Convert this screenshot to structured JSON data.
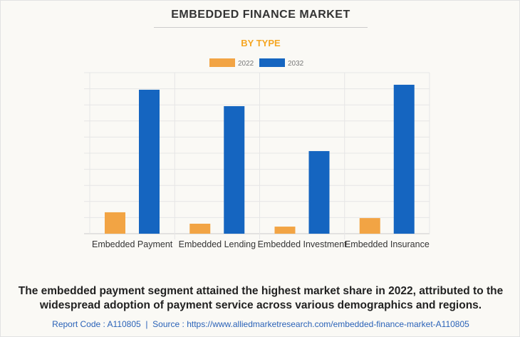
{
  "title": "EMBEDDED FINANCE MARKET",
  "subtitle": "BY TYPE",
  "caption": "The embedded payment segment attained the highest market share in 2022, attributed to the widespread adoption of payment service across various demographics and regions.",
  "source": {
    "report_code": "Report Code : A110805",
    "separator": "|",
    "source_text": "Source : https://www.alliedmarketresearch.com/embedded-finance-market-A110805"
  },
  "chart_data": {
    "type": "bar",
    "title": "EMBEDDED FINANCE MARKET",
    "subtitle": "BY TYPE",
    "categories": [
      "Embedded Payment",
      "Embedded Lending",
      "Embedded Investment",
      "Embedded Insurance"
    ],
    "series": [
      {
        "name": "2022",
        "color": "#f2a444",
        "values": [
          1.33,
          0.62,
          0.44,
          0.97
        ]
      },
      {
        "name": "2032",
        "color": "#1565c0",
        "values": [
          8.94,
          7.92,
          5.13,
          9.25
        ]
      }
    ],
    "ylim": [
      0,
      10
    ],
    "y_tick_labels_shown": false,
    "grid": true,
    "legend": "top-center",
    "xlabel": "",
    "ylabel": ""
  }
}
